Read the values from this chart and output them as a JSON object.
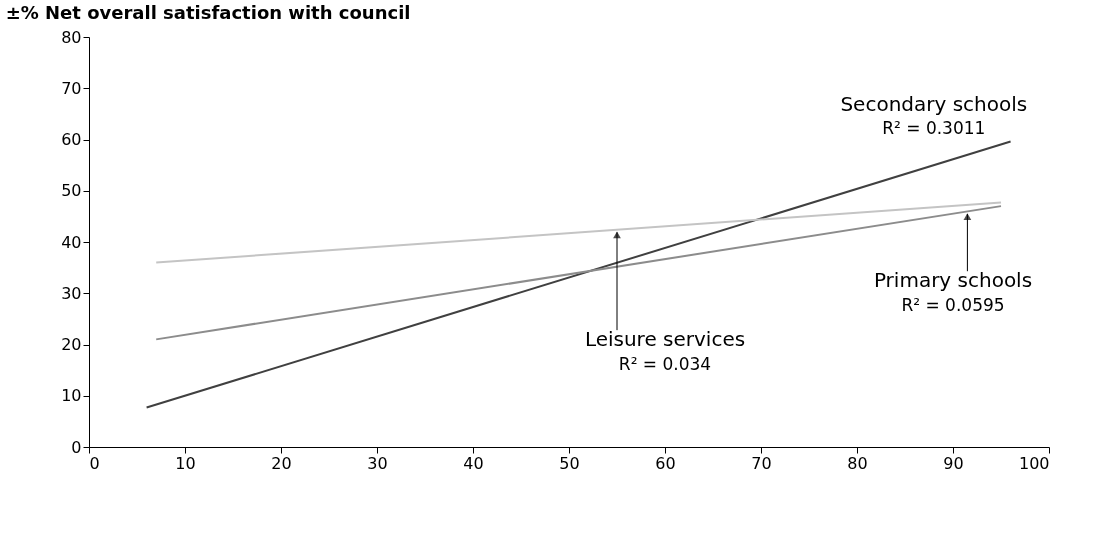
{
  "chart_data": {
    "type": "line",
    "title": "±% Net overall satisfaction with council",
    "xlim": [
      0,
      100
    ],
    "xticks": [
      0,
      10,
      20,
      30,
      40,
      50,
      60,
      70,
      80,
      90,
      100
    ],
    "ylim": [
      0,
      80
    ],
    "yticks": [
      0,
      10,
      20,
      30,
      40,
      50,
      60,
      70,
      80
    ],
    "grid": false,
    "legend": false,
    "marker": "none",
    "line_style": "solid",
    "series": [
      {
        "name": "Secondary schools",
        "color": "#404040",
        "x": [
          6,
          96
        ],
        "values": [
          7.7,
          59.6
        ]
      },
      {
        "name": "Primary schools",
        "color": "#8c8c8c",
        "x": [
          7,
          95
        ],
        "values": [
          21,
          47
        ]
      },
      {
        "name": "Leisure services",
        "color": "#c4c4c4",
        "x": [
          7,
          95
        ],
        "values": [
          36,
          47.7
        ]
      }
    ],
    "annotations": [
      "R² = 0.3011",
      "R² = 0.0595",
      "R² = 0.034"
    ]
  }
}
